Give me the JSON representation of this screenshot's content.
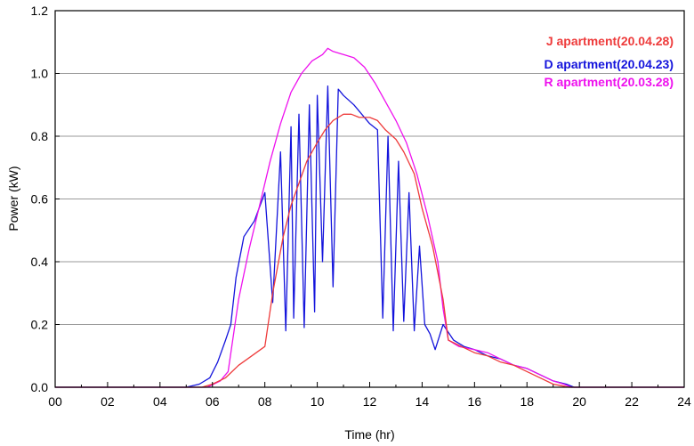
{
  "chart_data": {
    "type": "line",
    "xlabel": "Time (hr)",
    "ylabel": "Power (kW)",
    "xlim": [
      0,
      24
    ],
    "ylim": [
      0,
      1.2
    ],
    "x_ticks": [
      "00",
      "02",
      "04",
      "06",
      "08",
      "10",
      "12",
      "14",
      "16",
      "18",
      "20",
      "22",
      "24"
    ],
    "y_ticks": [
      "0.0",
      "0.2",
      "0.4",
      "0.6",
      "0.8",
      "1.0",
      "1.2"
    ],
    "grid": "horizontal",
    "legend_position": "top-right",
    "series": [
      {
        "name": "J apartment(20.04.28)",
        "color": "#ee3b3b",
        "x": [
          0,
          5.6,
          6.0,
          6.5,
          7.0,
          7.5,
          8.0,
          8.3,
          8.7,
          9.0,
          9.3,
          9.6,
          10.0,
          10.3,
          10.6,
          11.0,
          11.3,
          11.6,
          12.0,
          12.3,
          12.6,
          13.0,
          13.3,
          13.7,
          14.0,
          14.4,
          14.8,
          15.0,
          15.5,
          16.0,
          16.5,
          17.0,
          17.5,
          18.0,
          18.5,
          19.0,
          19.3,
          19.6,
          24
        ],
        "y": [
          0,
          0,
          0.01,
          0.03,
          0.07,
          0.1,
          0.13,
          0.3,
          0.48,
          0.58,
          0.65,
          0.72,
          0.78,
          0.82,
          0.85,
          0.87,
          0.87,
          0.86,
          0.86,
          0.85,
          0.82,
          0.79,
          0.75,
          0.68,
          0.57,
          0.45,
          0.28,
          0.15,
          0.13,
          0.11,
          0.1,
          0.08,
          0.07,
          0.05,
          0.03,
          0.01,
          0.005,
          0,
          0
        ]
      },
      {
        "name": "D apartment(20.04.23)",
        "color": "#1414dc",
        "x": [
          0,
          5.0,
          5.5,
          5.9,
          6.2,
          6.5,
          6.7,
          6.9,
          7.2,
          7.6,
          8.0,
          8.3,
          8.6,
          8.8,
          9.0,
          9.1,
          9.3,
          9.5,
          9.7,
          9.9,
          10.0,
          10.2,
          10.4,
          10.6,
          10.8,
          11.0,
          11.4,
          11.8,
          12.0,
          12.3,
          12.5,
          12.7,
          12.9,
          13.1,
          13.3,
          13.5,
          13.7,
          13.9,
          14.1,
          14.3,
          14.5,
          14.8,
          15.2,
          15.6,
          16.0,
          16.5,
          17.0,
          17.5,
          18.0,
          18.5,
          19.0,
          19.5,
          19.8,
          24
        ],
        "y": [
          0,
          0,
          0.01,
          0.03,
          0.08,
          0.15,
          0.2,
          0.35,
          0.48,
          0.53,
          0.62,
          0.27,
          0.75,
          0.18,
          0.83,
          0.22,
          0.87,
          0.19,
          0.9,
          0.24,
          0.93,
          0.4,
          0.96,
          0.32,
          0.95,
          0.93,
          0.9,
          0.86,
          0.84,
          0.82,
          0.22,
          0.8,
          0.18,
          0.72,
          0.21,
          0.62,
          0.18,
          0.45,
          0.2,
          0.17,
          0.12,
          0.2,
          0.15,
          0.13,
          0.12,
          0.1,
          0.09,
          0.07,
          0.06,
          0.04,
          0.02,
          0.01,
          0,
          0
        ]
      },
      {
        "name": "R apartment(20.03.28)",
        "color": "#ee11ee",
        "x": [
          0,
          5.8,
          6.3,
          6.6,
          7.0,
          7.4,
          7.8,
          8.2,
          8.6,
          9.0,
          9.4,
          9.8,
          10.2,
          10.4,
          10.6,
          11.0,
          11.4,
          11.8,
          12.2,
          12.6,
          13.0,
          13.4,
          13.8,
          14.2,
          14.6,
          14.8,
          15.0,
          15.4,
          16.0,
          16.5,
          17.0,
          17.5,
          18.0,
          18.5,
          19.0,
          19.4,
          19.7,
          24
        ],
        "y": [
          0,
          0,
          0.02,
          0.05,
          0.28,
          0.44,
          0.58,
          0.72,
          0.84,
          0.94,
          1.0,
          1.04,
          1.06,
          1.08,
          1.07,
          1.06,
          1.05,
          1.02,
          0.97,
          0.91,
          0.85,
          0.78,
          0.68,
          0.55,
          0.4,
          0.25,
          0.15,
          0.13,
          0.12,
          0.11,
          0.09,
          0.07,
          0.06,
          0.04,
          0.02,
          0.01,
          0,
          0
        ]
      }
    ]
  }
}
